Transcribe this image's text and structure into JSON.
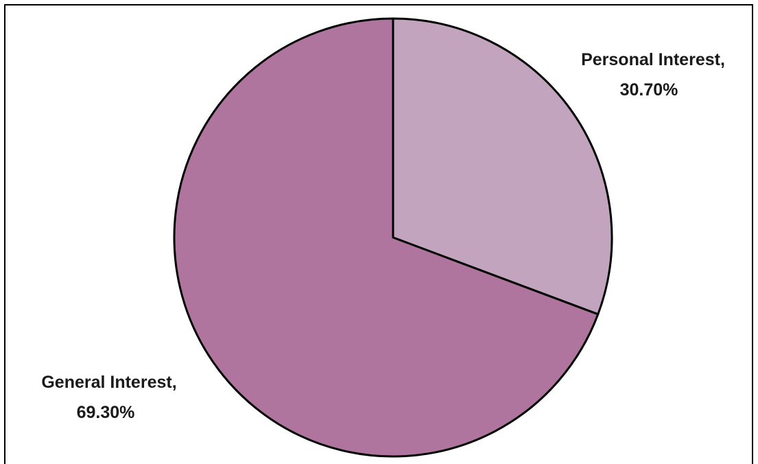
{
  "chart_data": {
    "type": "pie",
    "slices": [
      {
        "label": "Personal Interest",
        "value": 30.7,
        "value_label": "30.70%",
        "color": "#c3a4bf"
      },
      {
        "label": "General Interest",
        "value": 69.3,
        "value_label": "69.30%",
        "color": "#af759f"
      }
    ],
    "start_angle": "12 o'clock",
    "direction": "clockwise",
    "slice_border_color": "#000000",
    "legend": "none"
  }
}
